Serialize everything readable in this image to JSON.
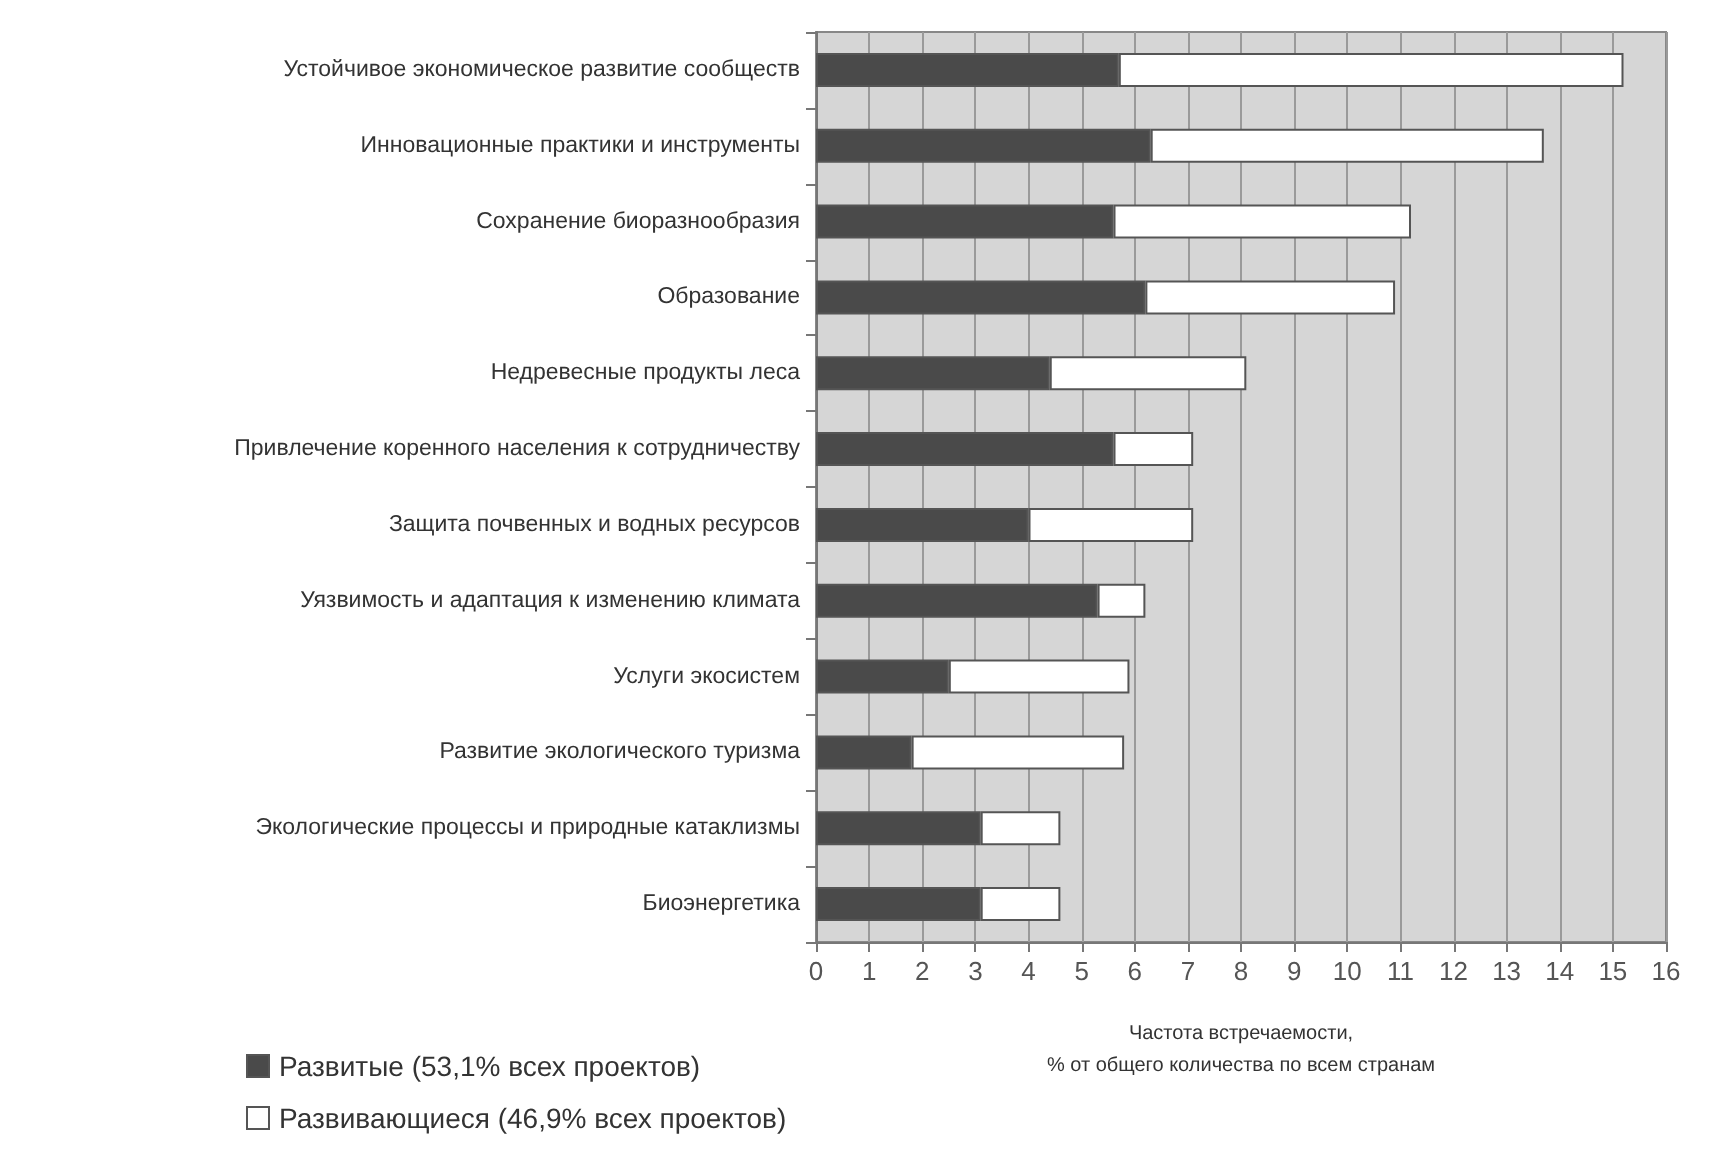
{
  "chart_data": {
    "type": "bar",
    "orientation": "horizontal",
    "stacked": true,
    "xlabel": "Частота встречаемости,\n% от общего количества по всем странам",
    "categories": [
      "Устойчивое экономическое развитие сообществ",
      "Инновационные практики и инструменты",
      "Сохранение биоразнообразия",
      "Образование",
      "Недревесные продукты леса",
      "Привлечение коренного населения к сотрудничеству",
      "Защита почвенных и водных ресурсов",
      "Уязвимость и адаптация к изменению климата",
      "Услуги экосистем",
      "Развитие экологического туризма",
      "Экологические процессы и природные катаклизмы",
      "Биоэнергетика"
    ],
    "series": [
      {
        "name": "Развитые (53,1% всех проектов)",
        "color": "#4a4a4a",
        "values": [
          5.7,
          6.3,
          5.6,
          6.2,
          4.4,
          5.6,
          4.0,
          5.3,
          2.5,
          1.8,
          3.1,
          3.1
        ]
      },
      {
        "name": "Развивающиеся (46,9% всех проектов)",
        "color": "#ffffff",
        "values": [
          9.5,
          7.4,
          5.6,
          4.7,
          3.7,
          1.5,
          3.1,
          0.9,
          3.4,
          4.0,
          1.5,
          1.5
        ]
      }
    ],
    "xlim": [
      0,
      16
    ],
    "xticks": [
      0,
      1,
      2,
      3,
      4,
      5,
      6,
      7,
      8,
      9,
      10,
      11,
      12,
      13,
      14,
      15,
      16
    ],
    "grid": "x",
    "legend": "bottom left"
  }
}
